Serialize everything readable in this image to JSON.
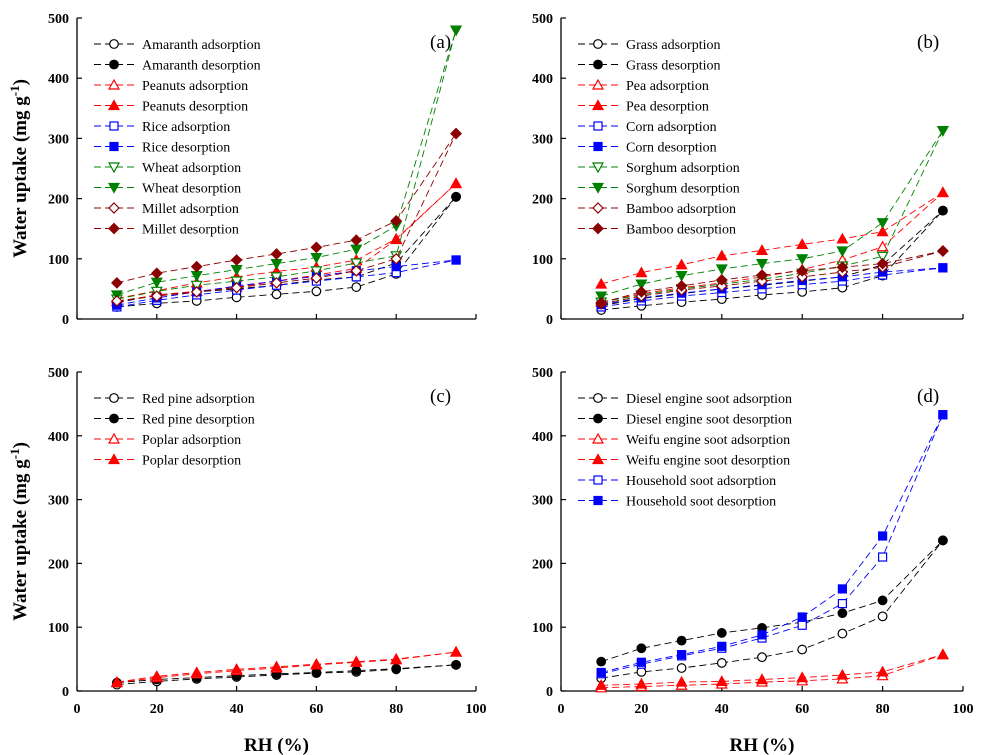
{
  "styles": {
    "black": "#000000",
    "red": "#ff0000",
    "blue": "#0000ff",
    "green": "#008000",
    "darkred": "#8b0000"
  },
  "xlabel": "RH (%)",
  "ylabel_main": "Water uptake (mg g",
  "ylabel_sup": "-1",
  "ylabel_end": ")",
  "chart_data": [
    {
      "type": "line",
      "panel_label": "(a)",
      "xlim": [
        0,
        100
      ],
      "ylim": [
        0,
        500
      ],
      "xticks": [
        "0",
        "20",
        "40",
        "60",
        "80",
        "100"
      ],
      "yticks": [
        "0",
        "100",
        "200",
        "300",
        "400",
        "500"
      ],
      "show_xtick_labels": false,
      "show_xlabel": false,
      "show_ylabel": true,
      "legend": "top-left",
      "series": [
        {
          "name": "Amaranth adsorption",
          "color": "#000000",
          "marker": "circle",
          "filled": false,
          "x": [
            10,
            20,
            30,
            40,
            50,
            60,
            70,
            80,
            95
          ],
          "y": [
            20,
            26,
            30,
            36,
            41,
            46,
            53,
            75,
            203
          ]
        },
        {
          "name": "Amaranth desorption",
          "color": "#000000",
          "marker": "circle",
          "filled": true,
          "x": [
            10,
            20,
            30,
            40,
            50,
            60,
            70,
            80,
            95
          ],
          "y": [
            27,
            40,
            45,
            50,
            56,
            65,
            70,
            93,
            203
          ]
        },
        {
          "name": "Peanuts adsorption",
          "color": "#ff0000",
          "marker": "triangle",
          "filled": false,
          "x": [
            10,
            20,
            30,
            40,
            50,
            60,
            70,
            80,
            95
          ],
          "y": [
            29,
            40,
            46,
            53,
            63,
            73,
            84,
            132,
            225
          ]
        },
        {
          "name": "Peanuts desorption",
          "color": "#ff0000",
          "marker": "triangle",
          "filled": true,
          "x": [
            10,
            20,
            30,
            40,
            50,
            60,
            70,
            80,
            95
          ],
          "y": [
            34,
            47,
            60,
            70,
            79,
            86,
            98,
            133,
            225
          ]
        },
        {
          "name": "Rice adsorption",
          "color": "#0000ff",
          "marker": "square",
          "filled": false,
          "x": [
            10,
            20,
            30,
            40,
            50,
            60,
            70,
            80,
            95
          ],
          "y": [
            20,
            31,
            40,
            48,
            56,
            63,
            70,
            77,
            98
          ]
        },
        {
          "name": "Rice desorption",
          "color": "#0000ff",
          "marker": "square",
          "filled": true,
          "x": [
            10,
            20,
            30,
            40,
            50,
            60,
            70,
            80,
            95
          ],
          "y": [
            23,
            35,
            45,
            55,
            63,
            71,
            80,
            87,
            98
          ]
        },
        {
          "name": "Wheat adsorption",
          "color": "#008000",
          "marker": "triangle-down",
          "filled": false,
          "x": [
            10,
            20,
            30,
            40,
            50,
            60,
            70,
            80,
            95
          ],
          "y": [
            33,
            46,
            56,
            63,
            70,
            80,
            93,
            105,
            480
          ]
        },
        {
          "name": "Wheat desorption",
          "color": "#008000",
          "marker": "triangle-down",
          "filled": true,
          "x": [
            10,
            20,
            30,
            40,
            50,
            60,
            70,
            80,
            95
          ],
          "y": [
            40,
            61,
            72,
            82,
            92,
            102,
            116,
            155,
            480
          ]
        },
        {
          "name": "Millet adsorption",
          "color": "#8b0000",
          "marker": "diamond",
          "filled": false,
          "x": [
            10,
            20,
            30,
            40,
            50,
            60,
            70,
            80,
            95
          ],
          "y": [
            30,
            38,
            45,
            52,
            60,
            68,
            80,
            100,
            308
          ]
        },
        {
          "name": "Millet desorption",
          "color": "#8b0000",
          "marker": "diamond",
          "filled": true,
          "x": [
            10,
            20,
            30,
            40,
            50,
            60,
            70,
            80,
            95
          ],
          "y": [
            60,
            76,
            87,
            98,
            108,
            119,
            131,
            163,
            308
          ]
        }
      ]
    },
    {
      "type": "line",
      "panel_label": "(b)",
      "xlim": [
        0,
        100
      ],
      "ylim": [
        0,
        500
      ],
      "xticks": [
        "0",
        "20",
        "40",
        "60",
        "80",
        "100"
      ],
      "yticks": [
        "0",
        "100",
        "200",
        "300",
        "400",
        "500"
      ],
      "show_xtick_labels": false,
      "show_xlabel": false,
      "show_ylabel": false,
      "legend": "top-left",
      "series": [
        {
          "name": "Grass adsorption",
          "color": "#000000",
          "marker": "circle",
          "filled": false,
          "x": [
            10,
            20,
            30,
            40,
            50,
            60,
            70,
            80,
            95
          ],
          "y": [
            15,
            22,
            28,
            33,
            40,
            45,
            52,
            72,
            180
          ]
        },
        {
          "name": "Grass desorption",
          "color": "#000000",
          "marker": "circle",
          "filled": true,
          "x": [
            10,
            20,
            30,
            40,
            50,
            60,
            70,
            80,
            95
          ],
          "y": [
            22,
            34,
            42,
            50,
            56,
            63,
            70,
            90,
            180
          ]
        },
        {
          "name": "Pea adsorption",
          "color": "#ff0000",
          "marker": "triangle",
          "filled": false,
          "x": [
            10,
            20,
            30,
            40,
            50,
            60,
            70,
            80,
            95
          ],
          "y": [
            28,
            42,
            52,
            60,
            70,
            82,
            98,
            120,
            210
          ]
        },
        {
          "name": "Pea desorption",
          "color": "#ff0000",
          "marker": "triangle",
          "filled": true,
          "x": [
            10,
            20,
            30,
            40,
            50,
            60,
            70,
            80,
            95
          ],
          "y": [
            58,
            77,
            90,
            105,
            114,
            124,
            133,
            145,
            210
          ]
        },
        {
          "name": "Corn adsorption",
          "color": "#0000ff",
          "marker": "square",
          "filled": false,
          "x": [
            10,
            20,
            30,
            40,
            50,
            60,
            70,
            80,
            95
          ],
          "y": [
            20,
            30,
            38,
            44,
            50,
            57,
            63,
            73,
            85
          ]
        },
        {
          "name": "Corn desorption",
          "color": "#0000ff",
          "marker": "square",
          "filled": true,
          "x": [
            10,
            20,
            30,
            40,
            50,
            60,
            70,
            80,
            95
          ],
          "y": [
            24,
            35,
            43,
            50,
            57,
            64,
            70,
            78,
            85
          ]
        },
        {
          "name": "Sorghum adsorption",
          "color": "#008000",
          "marker": "triangle-down",
          "filled": false,
          "x": [
            10,
            20,
            30,
            40,
            50,
            60,
            70,
            80,
            95
          ],
          "y": [
            28,
            40,
            50,
            58,
            66,
            76,
            88,
            104,
            313
          ]
        },
        {
          "name": "Sorghum desorption",
          "color": "#008000",
          "marker": "triangle-down",
          "filled": true,
          "x": [
            10,
            20,
            30,
            40,
            50,
            60,
            70,
            80,
            95
          ],
          "y": [
            38,
            58,
            72,
            83,
            92,
            100,
            113,
            160,
            313
          ]
        },
        {
          "name": "Bamboo adsorption",
          "color": "#8b0000",
          "marker": "diamond",
          "filled": false,
          "x": [
            10,
            20,
            30,
            40,
            50,
            60,
            70,
            80,
            95
          ],
          "y": [
            25,
            38,
            48,
            55,
            63,
            70,
            78,
            86,
            113
          ]
        },
        {
          "name": "Bamboo desorption",
          "color": "#8b0000",
          "marker": "diamond",
          "filled": true,
          "x": [
            10,
            20,
            30,
            40,
            50,
            60,
            70,
            80,
            95
          ],
          "y": [
            27,
            45,
            55,
            65,
            73,
            80,
            86,
            92,
            113
          ]
        }
      ]
    },
    {
      "type": "line",
      "panel_label": "(c)",
      "xlim": [
        0,
        100
      ],
      "ylim": [
        0,
        500
      ],
      "xticks": [
        "0",
        "20",
        "40",
        "60",
        "80",
        "100"
      ],
      "yticks": [
        "0",
        "100",
        "200",
        "300",
        "400",
        "500"
      ],
      "show_xtick_labels": true,
      "show_xlabel": true,
      "show_ylabel": true,
      "legend": "top-left",
      "series": [
        {
          "name": "Red pine adsorption",
          "color": "#000000",
          "marker": "circle",
          "filled": false,
          "x": [
            10,
            20,
            30,
            40,
            50,
            60,
            70,
            80,
            95
          ],
          "y": [
            10,
            15,
            19,
            22,
            25,
            28,
            30,
            34,
            41
          ]
        },
        {
          "name": "Red pine desorption",
          "color": "#000000",
          "marker": "circle",
          "filled": true,
          "x": [
            10,
            20,
            30,
            40,
            50,
            60,
            70,
            80,
            95
          ],
          "y": [
            13,
            18,
            21,
            24,
            27,
            29,
            32,
            35,
            41
          ]
        },
        {
          "name": "Poplar adsorption",
          "color": "#ff0000",
          "marker": "triangle",
          "filled": false,
          "x": [
            10,
            20,
            30,
            40,
            50,
            60,
            70,
            80,
            95
          ],
          "y": [
            13,
            21,
            27,
            32,
            36,
            41,
            45,
            49,
            61
          ]
        },
        {
          "name": "Poplar desorption",
          "color": "#ff0000",
          "marker": "triangle",
          "filled": true,
          "x": [
            10,
            20,
            30,
            40,
            50,
            60,
            70,
            80,
            95
          ],
          "y": [
            14,
            23,
            29,
            34,
            38,
            42,
            46,
            50,
            61
          ]
        }
      ]
    },
    {
      "type": "line",
      "panel_label": "(d)",
      "xlim": [
        0,
        100
      ],
      "ylim": [
        0,
        500
      ],
      "xticks": [
        "0",
        "20",
        "40",
        "60",
        "80",
        "100"
      ],
      "yticks": [
        "0",
        "100",
        "200",
        "300",
        "400",
        "500"
      ],
      "show_xtick_labels": true,
      "show_xlabel": true,
      "show_ylabel": false,
      "legend": "top-left",
      "series": [
        {
          "name": "Diesel engine soot  adsorption",
          "color": "#000000",
          "marker": "circle",
          "filled": false,
          "x": [
            10,
            20,
            30,
            40,
            50,
            60,
            70,
            80,
            95
          ],
          "y": [
            20,
            30,
            36,
            44,
            53,
            65,
            90,
            117,
            236
          ]
        },
        {
          "name": "Diesel engine soot  desorption",
          "color": "#000000",
          "marker": "circle",
          "filled": true,
          "x": [
            10,
            20,
            30,
            40,
            50,
            60,
            70,
            80,
            95
          ],
          "y": [
            46,
            67,
            79,
            91,
            99,
            108,
            122,
            142,
            236
          ]
        },
        {
          "name": "Weifu engine soot adsorption",
          "color": "#ff0000",
          "marker": "triangle",
          "filled": false,
          "x": [
            10,
            20,
            30,
            40,
            50,
            60,
            70,
            80,
            95
          ],
          "y": [
            5,
            7,
            9,
            11,
            14,
            16,
            19,
            24,
            57
          ]
        },
        {
          "name": "Weifu engine soot desorption",
          "color": "#ff0000",
          "marker": "triangle",
          "filled": true,
          "x": [
            10,
            20,
            30,
            40,
            50,
            60,
            70,
            80,
            95
          ],
          "y": [
            9,
            11,
            14,
            15,
            18,
            21,
            25,
            30,
            57
          ]
        },
        {
          "name": "Household soot adsorption",
          "color": "#0000ff",
          "marker": "square",
          "filled": false,
          "x": [
            10,
            20,
            30,
            40,
            50,
            60,
            70,
            80,
            95
          ],
          "y": [
            27,
            42,
            55,
            67,
            83,
            103,
            137,
            210,
            433
          ]
        },
        {
          "name": "Household soot desorption",
          "color": "#0000ff",
          "marker": "square",
          "filled": true,
          "x": [
            10,
            20,
            30,
            40,
            50,
            60,
            70,
            80,
            95
          ],
          "y": [
            29,
            45,
            57,
            70,
            88,
            116,
            160,
            243,
            433
          ]
        }
      ]
    }
  ]
}
